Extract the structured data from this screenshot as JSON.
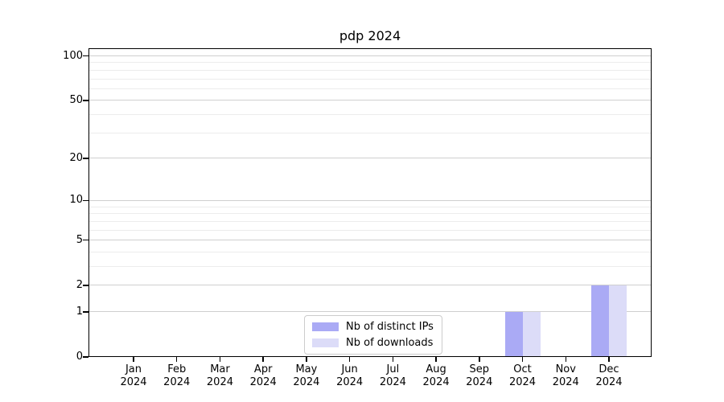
{
  "chart_data": {
    "type": "bar",
    "title": "pdp 2024",
    "categories": [
      "Jan",
      "Feb",
      "Mar",
      "Apr",
      "May",
      "Jun",
      "Jul",
      "Aug",
      "Sep",
      "Oct",
      "Nov",
      "Dec"
    ],
    "year_label": "2024",
    "series": [
      {
        "name": "Nb of distinct IPs",
        "color": "#aaaaf5",
        "values": [
          0,
          0,
          0,
          0,
          0,
          0,
          0,
          0,
          0,
          1,
          0,
          2
        ]
      },
      {
        "name": "Nb of downloads",
        "color": "#dcdcf8",
        "values": [
          0,
          0,
          0,
          0,
          0,
          0,
          0,
          0,
          0,
          1,
          0,
          2
        ]
      }
    ],
    "y_axis": {
      "scale": "log1p",
      "major_ticks": [
        0,
        1,
        2,
        5,
        10,
        20,
        50,
        100
      ],
      "minor_ticks": [
        3,
        4,
        6,
        7,
        8,
        9,
        30,
        40,
        60,
        70,
        80,
        90
      ],
      "ylim": [
        0,
        111
      ]
    },
    "xlabel": "",
    "ylabel": "",
    "grid": {
      "show": "both",
      "major_color": "#cfcfcf",
      "minor_color": "#ececec"
    },
    "legend": {
      "position": "lower center",
      "border_color": "#cccccc"
    },
    "axis_color": "#000000",
    "background_color": "#ffffff"
  }
}
